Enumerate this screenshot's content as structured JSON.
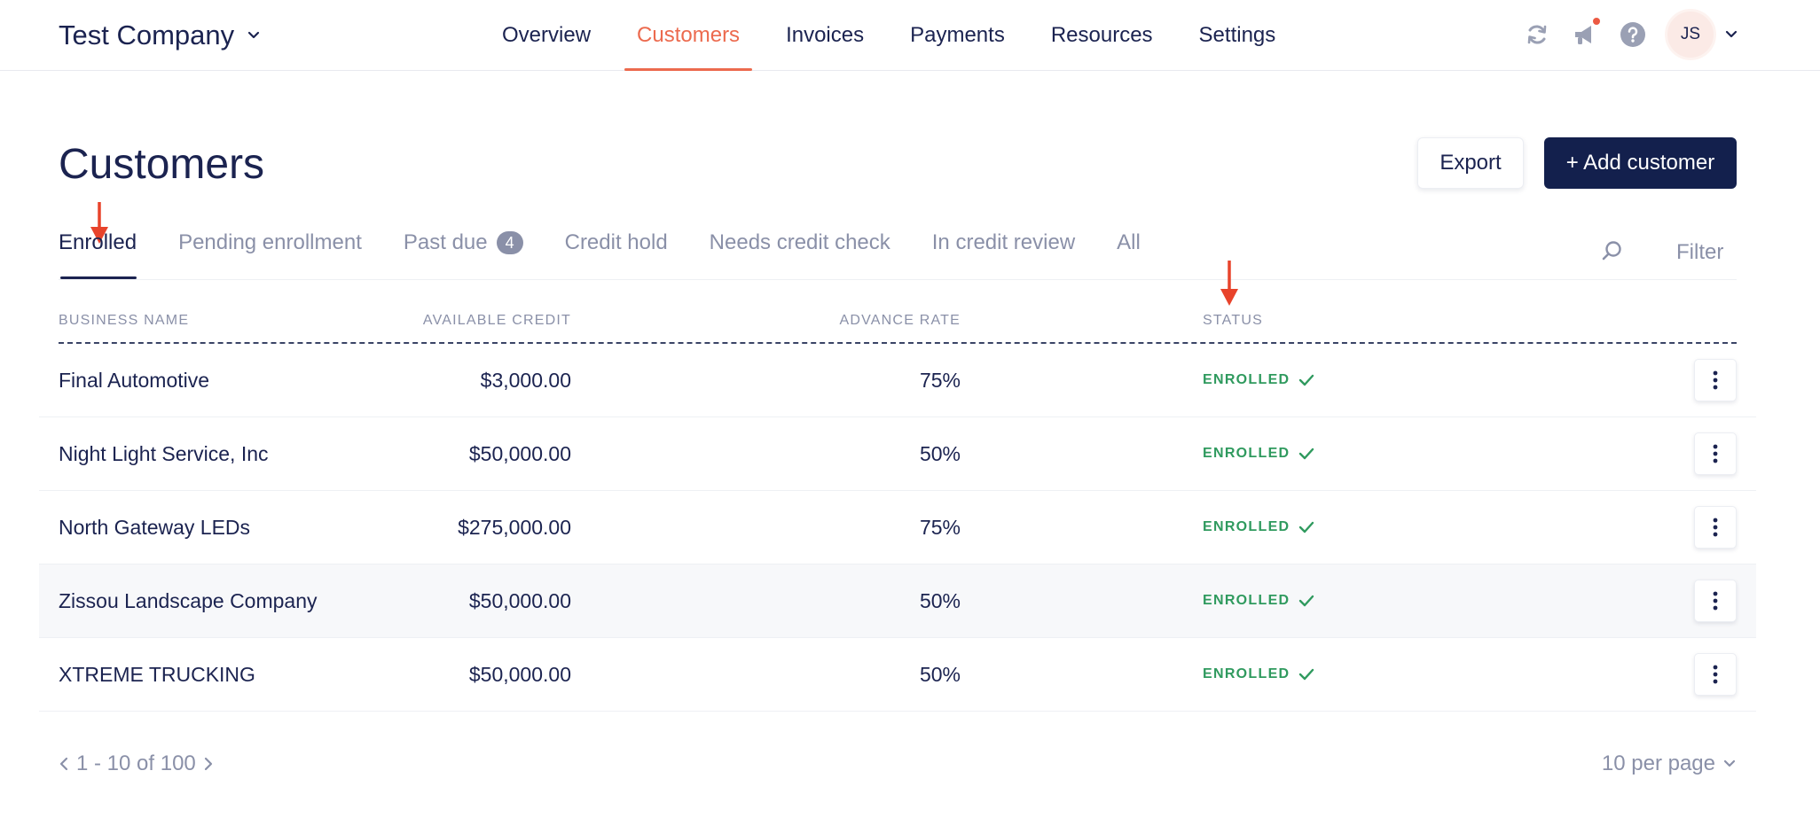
{
  "header": {
    "company_name": "Test Company",
    "nav": [
      {
        "label": "Overview"
      },
      {
        "label": "Customers",
        "active": true
      },
      {
        "label": "Invoices"
      },
      {
        "label": "Payments"
      },
      {
        "label": "Resources"
      },
      {
        "label": "Settings"
      }
    ],
    "icons": [
      "refresh-icon",
      "megaphone-icon",
      "help-icon"
    ],
    "user_initials": "JS",
    "accent_color": "#ec6a4e"
  },
  "page": {
    "title": "Customers",
    "export_label": "Export",
    "add_label": "+ Add customer"
  },
  "tabs": [
    {
      "label": "Enrolled",
      "active": true,
      "badge": ""
    },
    {
      "label": "Pending enrollment",
      "badge": ""
    },
    {
      "label": "Past due",
      "badge": "4"
    },
    {
      "label": "Credit hold",
      "badge": ""
    },
    {
      "label": "Needs credit check",
      "badge": ""
    },
    {
      "label": "In credit review",
      "badge": ""
    },
    {
      "label": "All",
      "badge": ""
    }
  ],
  "filter_label": "Filter",
  "table": {
    "columns": {
      "name": "Business name",
      "credit": "Available credit",
      "rate": "Advance rate",
      "status": "Status"
    },
    "rows": [
      {
        "name": "Final Automotive",
        "credit": "$3,000.00",
        "rate": "75%",
        "status": "ENROLLED"
      },
      {
        "name": "Night Light Service, Inc",
        "credit": "$50,000.00",
        "rate": "50%",
        "status": "ENROLLED"
      },
      {
        "name": "North Gateway LEDs",
        "credit": "$275,000.00",
        "rate": "75%",
        "status": "ENROLLED"
      },
      {
        "name": "Zissou Landscape Company",
        "credit": "$50,000.00",
        "rate": "50%",
        "status": "ENROLLED"
      },
      {
        "name": "XTREME TRUCKING",
        "credit": "$50,000.00",
        "rate": "50%",
        "status": "ENROLLED"
      }
    ],
    "status_color": "#2f9a5e"
  },
  "pagination": {
    "range_text": "1 - 10 of 100",
    "per_page": "10 per page"
  }
}
